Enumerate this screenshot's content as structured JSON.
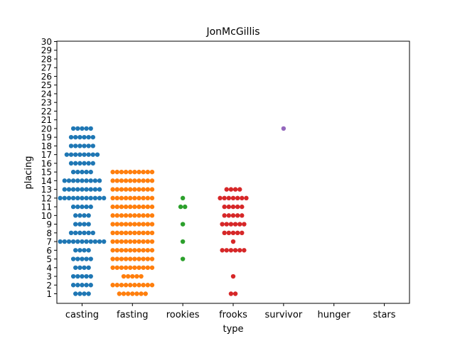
{
  "chart_data": {
    "type": "scatter",
    "subtype": "swarm",
    "title": "JonMcGillis",
    "xlabel": "type",
    "ylabel": "placing",
    "categories": [
      "casting",
      "fasting",
      "rookies",
      "frooks",
      "survivor",
      "hunger",
      "stars"
    ],
    "y_ticks": [
      1,
      2,
      3,
      4,
      5,
      6,
      7,
      8,
      9,
      10,
      11,
      12,
      13,
      14,
      15,
      16,
      17,
      18,
      19,
      20,
      21,
      22,
      23,
      24,
      25,
      26,
      27,
      28,
      29,
      30
    ],
    "ylim": [
      0,
      30
    ],
    "grid": false,
    "colors": {
      "casting": "#1f77b4",
      "fasting": "#ff7f0e",
      "rookies": "#2ca02c",
      "frooks": "#d62728",
      "survivor": "#9467bd",
      "hunger": "#8c564b",
      "stars": "#e377c2"
    },
    "points": {
      "casting": [
        {
          "y": 1,
          "count": 4
        },
        {
          "y": 2,
          "count": 5
        },
        {
          "y": 3,
          "count": 5
        },
        {
          "y": 4,
          "count": 4
        },
        {
          "y": 5,
          "count": 5
        },
        {
          "y": 6,
          "count": 4
        },
        {
          "y": 7,
          "count": 11
        },
        {
          "y": 8,
          "count": 6
        },
        {
          "y": 9,
          "count": 4
        },
        {
          "y": 10,
          "count": 4
        },
        {
          "y": 11,
          "count": 5
        },
        {
          "y": 12,
          "count": 11
        },
        {
          "y": 13,
          "count": 9
        },
        {
          "y": 14,
          "count": 9
        },
        {
          "y": 15,
          "count": 5
        },
        {
          "y": 16,
          "count": 6
        },
        {
          "y": 17,
          "count": 8
        },
        {
          "y": 18,
          "count": 6
        },
        {
          "y": 19,
          "count": 6
        },
        {
          "y": 20,
          "count": 5
        }
      ],
      "fasting": [
        {
          "y": 1,
          "count": 7
        },
        {
          "y": 2,
          "count": 10
        },
        {
          "y": 3,
          "count": 5
        },
        {
          "y": 4,
          "count": 10
        },
        {
          "y": 5,
          "count": 10
        },
        {
          "y": 6,
          "count": 10
        },
        {
          "y": 7,
          "count": 10
        },
        {
          "y": 8,
          "count": 10
        },
        {
          "y": 9,
          "count": 10
        },
        {
          "y": 10,
          "count": 10
        },
        {
          "y": 11,
          "count": 10
        },
        {
          "y": 12,
          "count": 10
        },
        {
          "y": 13,
          "count": 10
        },
        {
          "y": 14,
          "count": 10
        },
        {
          "y": 15,
          "count": 10
        }
      ],
      "rookies": [
        {
          "y": 5,
          "count": 1
        },
        {
          "y": 7,
          "count": 1
        },
        {
          "y": 9,
          "count": 1
        },
        {
          "y": 11,
          "count": 2
        },
        {
          "y": 12,
          "count": 1
        }
      ],
      "frooks": [
        {
          "y": 1,
          "count": 2
        },
        {
          "y": 3,
          "count": 1
        },
        {
          "y": 6,
          "count": 6
        },
        {
          "y": 7,
          "count": 1
        },
        {
          "y": 8,
          "count": 5
        },
        {
          "y": 9,
          "count": 6
        },
        {
          "y": 10,
          "count": 5
        },
        {
          "y": 11,
          "count": 5
        },
        {
          "y": 12,
          "count": 7
        },
        {
          "y": 13,
          "count": 4
        }
      ],
      "survivor": [
        {
          "y": 20,
          "count": 1
        }
      ],
      "hunger": [],
      "stars": []
    }
  }
}
